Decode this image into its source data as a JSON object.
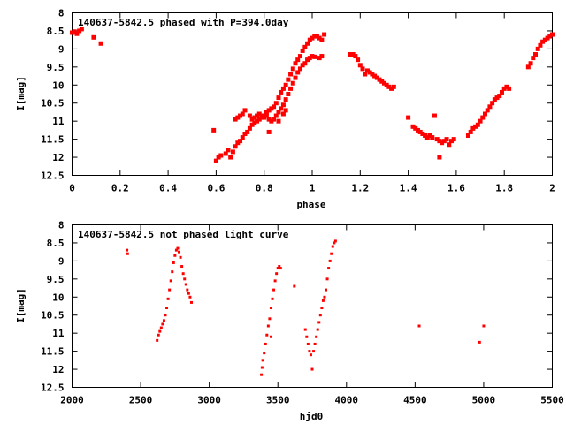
{
  "chart_data": [
    {
      "type": "scatter",
      "title": "140637-5842.5 phased with P=394.0day",
      "xlabel": "phase",
      "ylabel": "I[mag]",
      "xlim": [
        0,
        2
      ],
      "ylim": [
        8,
        12.5
      ],
      "y_inverted": true,
      "x_ticks": [
        "0",
        "0.2",
        "0.4",
        "0.6",
        "0.8",
        "1",
        "1.2",
        "1.4",
        "1.6",
        "1.8",
        "2"
      ],
      "y_ticks": [
        "8",
        "8.5",
        "9",
        "9.5",
        "10",
        "10.5",
        "11",
        "11.5",
        "12",
        "12.5"
      ],
      "grid": false,
      "marker_color": "#ff0000",
      "series": [
        {
          "points": [
            [
              0.0,
              8.55
            ],
            [
              0.01,
              8.52
            ],
            [
              0.02,
              8.58
            ],
            [
              0.03,
              8.5
            ],
            [
              0.04,
              8.45
            ],
            [
              0.09,
              8.68
            ],
            [
              0.12,
              8.85
            ],
            [
              0.59,
              11.25
            ],
            [
              0.6,
              12.1
            ],
            [
              0.61,
              12.0
            ],
            [
              0.62,
              11.95
            ],
            [
              0.64,
              11.9
            ],
            [
              0.65,
              11.8
            ],
            [
              0.66,
              12.0
            ],
            [
              0.67,
              11.85
            ],
            [
              0.68,
              11.7
            ],
            [
              0.69,
              11.6
            ],
            [
              0.7,
              11.55
            ],
            [
              0.71,
              11.45
            ],
            [
              0.72,
              11.35
            ],
            [
              0.73,
              11.3
            ],
            [
              0.74,
              11.2
            ],
            [
              0.75,
              11.1
            ],
            [
              0.76,
              11.05
            ],
            [
              0.77,
              11.0
            ],
            [
              0.78,
              10.95
            ],
            [
              0.79,
              10.9
            ],
            [
              0.8,
              10.85
            ],
            [
              0.81,
              10.75
            ],
            [
              0.82,
              10.7
            ],
            [
              0.83,
              10.65
            ],
            [
              0.84,
              10.6
            ],
            [
              0.85,
              10.5
            ],
            [
              0.86,
              10.35
            ],
            [
              0.87,
              10.2
            ],
            [
              0.88,
              10.1
            ],
            [
              0.89,
              10.0
            ],
            [
              0.9,
              9.85
            ],
            [
              0.91,
              9.7
            ],
            [
              0.92,
              9.55
            ],
            [
              0.93,
              9.4
            ],
            [
              0.94,
              9.3
            ],
            [
              0.95,
              9.2
            ],
            [
              0.96,
              9.05
            ],
            [
              0.97,
              8.95
            ],
            [
              0.98,
              8.85
            ],
            [
              0.99,
              8.75
            ],
            [
              1.0,
              8.7
            ],
            [
              1.01,
              8.65
            ],
            [
              1.02,
              8.65
            ],
            [
              1.03,
              8.7
            ],
            [
              1.04,
              8.75
            ],
            [
              1.05,
              8.6
            ],
            [
              0.68,
              10.95
            ],
            [
              0.69,
              10.9
            ],
            [
              0.7,
              10.85
            ],
            [
              0.71,
              10.8
            ],
            [
              0.72,
              10.7
            ],
            [
              0.74,
              10.85
            ],
            [
              0.75,
              10.95
            ],
            [
              0.76,
              10.9
            ],
            [
              0.77,
              10.85
            ],
            [
              0.78,
              10.8
            ],
            [
              0.79,
              10.85
            ],
            [
              0.8,
              10.9
            ],
            [
              0.81,
              10.85
            ],
            [
              0.82,
              10.95
            ],
            [
              0.83,
              11.0
            ],
            [
              0.84,
              10.95
            ],
            [
              0.85,
              10.85
            ],
            [
              0.86,
              10.75
            ],
            [
              0.87,
              10.65
            ],
            [
              0.88,
              10.55
            ],
            [
              0.89,
              10.4
            ],
            [
              0.9,
              10.25
            ],
            [
              0.91,
              10.1
            ],
            [
              0.92,
              9.95
            ],
            [
              0.93,
              9.8
            ],
            [
              0.94,
              9.65
            ],
            [
              0.95,
              9.55
            ],
            [
              0.96,
              9.45
            ],
            [
              0.97,
              9.4
            ],
            [
              0.98,
              9.3
            ],
            [
              0.99,
              9.25
            ],
            [
              1.0,
              9.2
            ],
            [
              1.01,
              9.22
            ],
            [
              1.03,
              9.25
            ],
            [
              1.04,
              9.2
            ],
            [
              0.82,
              11.3
            ],
            [
              0.86,
              11.0
            ],
            [
              0.88,
              10.8
            ],
            [
              0.89,
              10.7
            ],
            [
              1.16,
              9.15
            ],
            [
              1.17,
              9.15
            ],
            [
              1.18,
              9.2
            ],
            [
              1.19,
              9.3
            ],
            [
              1.2,
              9.45
            ],
            [
              1.21,
              9.55
            ],
            [
              1.22,
              9.7
            ],
            [
              1.23,
              9.6
            ],
            [
              1.24,
              9.65
            ],
            [
              1.25,
              9.7
            ],
            [
              1.26,
              9.75
            ],
            [
              1.27,
              9.8
            ],
            [
              1.28,
              9.85
            ],
            [
              1.29,
              9.9
            ],
            [
              1.3,
              9.95
            ],
            [
              1.31,
              10.0
            ],
            [
              1.32,
              10.05
            ],
            [
              1.33,
              10.1
            ],
            [
              1.34,
              10.05
            ],
            [
              1.4,
              10.9
            ],
            [
              1.42,
              11.15
            ],
            [
              1.43,
              11.2
            ],
            [
              1.44,
              11.25
            ],
            [
              1.45,
              11.3
            ],
            [
              1.46,
              11.35
            ],
            [
              1.47,
              11.4
            ],
            [
              1.48,
              11.45
            ],
            [
              1.49,
              11.4
            ],
            [
              1.5,
              11.45
            ],
            [
              1.51,
              10.85
            ],
            [
              1.52,
              11.5
            ],
            [
              1.53,
              11.55
            ],
            [
              1.54,
              11.6
            ],
            [
              1.55,
              11.55
            ],
            [
              1.56,
              11.5
            ],
            [
              1.57,
              11.65
            ],
            [
              1.58,
              11.55
            ],
            [
              1.59,
              11.5
            ],
            [
              1.53,
              12.0
            ],
            [
              1.65,
              11.4
            ],
            [
              1.66,
              11.3
            ],
            [
              1.67,
              11.2
            ],
            [
              1.68,
              11.15
            ],
            [
              1.69,
              11.1
            ],
            [
              1.7,
              11.0
            ],
            [
              1.71,
              10.9
            ],
            [
              1.72,
              10.8
            ],
            [
              1.73,
              10.7
            ],
            [
              1.74,
              10.6
            ],
            [
              1.75,
              10.5
            ],
            [
              1.76,
              10.4
            ],
            [
              1.77,
              10.35
            ],
            [
              1.78,
              10.3
            ],
            [
              1.79,
              10.2
            ],
            [
              1.8,
              10.1
            ],
            [
              1.81,
              10.05
            ],
            [
              1.82,
              10.1
            ],
            [
              1.9,
              9.5
            ],
            [
              1.91,
              9.4
            ],
            [
              1.92,
              9.25
            ],
            [
              1.93,
              9.15
            ],
            [
              1.94,
              9.0
            ],
            [
              1.95,
              8.9
            ],
            [
              1.96,
              8.8
            ],
            [
              1.97,
              8.75
            ],
            [
              1.98,
              8.7
            ],
            [
              1.99,
              8.65
            ],
            [
              2.0,
              8.6
            ]
          ]
        }
      ]
    },
    {
      "type": "scatter",
      "title": "140637-5842.5 not phased light curve",
      "xlabel": "hjd0",
      "ylabel": "I[mag]",
      "xlim": [
        2000,
        5500
      ],
      "ylim": [
        8,
        12.5
      ],
      "y_inverted": true,
      "x_ticks": [
        "2000",
        "2500",
        "3000",
        "3500",
        "4000",
        "4500",
        "5000",
        "5500"
      ],
      "y_ticks": [
        "8",
        "8.5",
        "9",
        "9.5",
        "10",
        "10.5",
        "11",
        "11.5",
        "12",
        "12.5"
      ],
      "grid": false,
      "marker_color": "#ff0000",
      "series": [
        {
          "points": [
            [
              2400,
              8.7
            ],
            [
              2405,
              8.8
            ],
            [
              2620,
              11.2
            ],
            [
              2630,
              11.05
            ],
            [
              2640,
              10.95
            ],
            [
              2650,
              10.85
            ],
            [
              2660,
              10.75
            ],
            [
              2670,
              10.65
            ],
            [
              2680,
              10.5
            ],
            [
              2690,
              10.3
            ],
            [
              2700,
              10.05
            ],
            [
              2710,
              9.8
            ],
            [
              2720,
              9.55
            ],
            [
              2730,
              9.3
            ],
            [
              2740,
              9.05
            ],
            [
              2750,
              8.85
            ],
            [
              2760,
              8.7
            ],
            [
              2770,
              8.65
            ],
            [
              2780,
              8.75
            ],
            [
              2790,
              8.9
            ],
            [
              2800,
              9.15
            ],
            [
              2810,
              9.35
            ],
            [
              2820,
              9.5
            ],
            [
              2830,
              9.65
            ],
            [
              2840,
              9.8
            ],
            [
              2850,
              9.9
            ],
            [
              2860,
              10.0
            ],
            [
              2870,
              10.15
            ],
            [
              3380,
              12.15
            ],
            [
              3385,
              11.95
            ],
            [
              3390,
              11.75
            ],
            [
              3400,
              11.55
            ],
            [
              3410,
              11.3
            ],
            [
              3420,
              11.05
            ],
            [
              3430,
              10.8
            ],
            [
              3440,
              10.6
            ],
            [
              3450,
              10.3
            ],
            [
              3460,
              10.05
            ],
            [
              3470,
              9.8
            ],
            [
              3480,
              9.55
            ],
            [
              3490,
              9.35
            ],
            [
              3500,
              9.2
            ],
            [
              3510,
              9.15
            ],
            [
              3520,
              9.2
            ],
            [
              3450,
              11.1
            ],
            [
              3620,
              9.7
            ],
            [
              3700,
              10.9
            ],
            [
              3710,
              11.1
            ],
            [
              3720,
              11.3
            ],
            [
              3730,
              11.5
            ],
            [
              3740,
              11.6
            ],
            [
              3750,
              12.0
            ],
            [
              3760,
              11.5
            ],
            [
              3770,
              11.3
            ],
            [
              3780,
              11.1
            ],
            [
              3790,
              10.9
            ],
            [
              3800,
              10.7
            ],
            [
              3810,
              10.5
            ],
            [
              3820,
              10.3
            ],
            [
              3830,
              10.1
            ],
            [
              3840,
              10.0
            ],
            [
              3850,
              9.8
            ],
            [
              3860,
              9.5
            ],
            [
              3870,
              9.2
            ],
            [
              3880,
              9.0
            ],
            [
              3890,
              8.8
            ],
            [
              3900,
              8.6
            ],
            [
              3910,
              8.5
            ],
            [
              3920,
              8.45
            ],
            [
              4530,
              10.8
            ],
            [
              4970,
              11.25
            ],
            [
              5000,
              10.8
            ]
          ]
        }
      ]
    }
  ]
}
